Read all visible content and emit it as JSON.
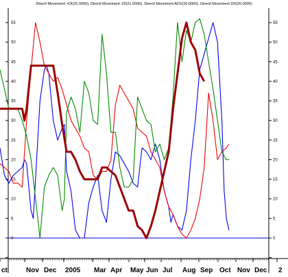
{
  "chart_data": {
    "type": "line",
    "title": "Directl Movement +DI(20.0000), Directl Movement -DI(21.0000), Directl Movement ADX(20.0000), Directl Movement DX(20.0000)",
    "xlabel": "",
    "ylabel": "",
    "ylim": [
      -5.5,
      58
    ],
    "x_range": [
      0,
      51.6
    ],
    "y_ticks": [
      0,
      5,
      10,
      15,
      20,
      25,
      30,
      35,
      40,
      45,
      50,
      55
    ],
    "x_ticks": [
      {
        "label": "ct",
        "x": 0
      },
      {
        "label": "Nov",
        "x": 4.3
      },
      {
        "label": "Dec",
        "x": 8.6
      },
      {
        "label": "2005",
        "x": 13.0
      },
      {
        "label": "Mar",
        "x": 17.5
      },
      {
        "label": "Apr",
        "x": 20.8
      },
      {
        "label": "May",
        "x": 24.9
      },
      {
        "label": "Jun",
        "x": 28.1
      },
      {
        "label": "Jul",
        "x": 31.8
      },
      {
        "label": "Aug",
        "x": 36.5
      },
      {
        "label": "Sep",
        "x": 40.0
      },
      {
        "label": "Oct",
        "x": 44.0
      },
      {
        "label": "Nov",
        "x": 48.3
      },
      {
        "label": "Dec",
        "x": 52.5
      },
      {
        "label": "2",
        "x": 56.6
      }
    ],
    "zero_line": 0,
    "grid": false,
    "series": [
      {
        "color": "#0000ee",
        "points": [
          [
            0,
            23
          ],
          [
            1,
            16
          ],
          [
            2,
            14
          ],
          [
            3,
            16
          ],
          [
            4,
            17
          ],
          [
            5,
            18
          ],
          [
            5.5,
            20
          ],
          [
            6,
            19
          ],
          [
            7,
            7
          ],
          [
            7.5,
            5
          ],
          [
            8,
            15
          ],
          [
            9,
            35
          ],
          [
            10,
            43
          ],
          [
            10.5,
            44
          ],
          [
            11,
            42
          ],
          [
            12,
            30
          ],
          [
            13,
            25
          ],
          [
            14,
            28
          ],
          [
            14.5,
            29
          ],
          [
            15,
            17
          ],
          [
            16,
            12
          ],
          [
            17,
            2
          ],
          [
            17.5,
            1
          ],
          [
            18,
            0
          ],
          [
            19,
            0
          ],
          [
            20,
            9
          ],
          [
            21,
            13
          ],
          [
            22,
            16
          ],
          [
            23,
            7
          ],
          [
            24,
            4
          ],
          [
            25,
            15
          ],
          [
            26,
            22
          ],
          [
            27,
            21
          ],
          [
            28,
            19
          ],
          [
            29,
            17
          ],
          [
            30,
            14
          ],
          [
            31,
            13
          ],
          [
            32,
            23
          ],
          [
            33,
            22
          ],
          [
            34,
            20
          ],
          [
            35,
            24
          ],
          [
            36,
            20
          ],
          [
            37,
            12
          ],
          [
            38,
            8
          ],
          [
            38.5,
            4
          ],
          [
            39,
            6
          ],
          [
            40,
            3
          ],
          [
            41,
            2
          ],
          [
            42,
            7
          ],
          [
            43,
            20
          ],
          [
            44,
            30
          ],
          [
            45,
            43
          ],
          [
            46,
            47
          ],
          [
            47,
            51
          ],
          [
            48,
            55
          ],
          [
            49,
            50
          ],
          [
            50,
            30
          ],
          [
            50.5,
            12
          ],
          [
            51,
            5
          ],
          [
            51.6,
            2
          ]
        ]
      },
      {
        "color": "#ee0000",
        "points": [
          [
            0,
            19
          ],
          [
            1,
            18
          ],
          [
            2,
            17
          ],
          [
            3,
            14
          ],
          [
            4,
            14
          ],
          [
            5,
            13
          ],
          [
            6,
            30
          ],
          [
            7,
            43
          ],
          [
            8,
            55
          ],
          [
            9,
            50
          ],
          [
            10,
            44
          ],
          [
            11,
            42
          ],
          [
            12,
            40
          ],
          [
            13,
            41
          ],
          [
            14,
            38
          ],
          [
            15,
            34
          ],
          [
            16,
            30
          ],
          [
            17,
            28
          ],
          [
            18,
            26
          ],
          [
            19,
            23
          ],
          [
            20,
            22
          ],
          [
            21,
            16
          ],
          [
            22,
            15
          ],
          [
            23,
            17
          ],
          [
            24,
            17
          ],
          [
            25,
            20
          ],
          [
            26,
            34
          ],
          [
            27,
            39
          ],
          [
            28,
            37
          ],
          [
            29,
            35
          ],
          [
            30,
            33
          ],
          [
            31,
            28
          ],
          [
            32,
            27
          ],
          [
            33,
            26
          ],
          [
            34,
            22
          ],
          [
            35,
            20
          ],
          [
            36,
            18
          ],
          [
            37,
            12
          ],
          [
            38,
            8
          ],
          [
            39,
            6
          ],
          [
            40,
            3
          ],
          [
            41,
            1
          ],
          [
            42,
            0
          ],
          [
            43,
            2
          ],
          [
            44,
            5
          ],
          [
            45,
            10
          ],
          [
            46,
            18
          ],
          [
            47,
            37
          ],
          [
            48,
            30
          ],
          [
            49,
            20
          ],
          [
            50,
            22
          ],
          [
            51,
            23
          ],
          [
            51.6,
            24
          ]
        ]
      },
      {
        "color": "#008800",
        "points": [
          [
            0,
            43
          ],
          [
            1,
            38
          ],
          [
            2,
            33
          ],
          [
            3,
            33
          ],
          [
            4,
            33
          ],
          [
            5,
            30
          ],
          [
            6,
            26
          ],
          [
            7,
            20
          ],
          [
            8,
            10
          ],
          [
            9,
            0
          ],
          [
            10,
            13
          ],
          [
            11,
            16
          ],
          [
            12,
            18
          ],
          [
            13,
            16
          ],
          [
            14,
            7
          ],
          [
            14.5,
            10
          ],
          [
            15,
            32
          ],
          [
            16,
            36
          ],
          [
            17,
            33
          ],
          [
            18,
            27
          ],
          [
            19,
            40
          ],
          [
            20,
            37
          ],
          [
            21,
            30
          ],
          [
            22,
            29
          ],
          [
            23,
            52
          ],
          [
            24,
            42
          ],
          [
            25,
            27
          ],
          [
            26,
            27
          ],
          [
            27,
            18
          ],
          [
            28,
            13
          ],
          [
            29,
            13
          ],
          [
            30,
            15
          ],
          [
            31,
            36
          ],
          [
            32,
            33
          ],
          [
            33,
            30
          ],
          [
            34,
            29
          ],
          [
            35,
            22
          ],
          [
            36,
            24
          ],
          [
            37,
            20
          ],
          [
            38,
            23
          ],
          [
            39,
            36
          ],
          [
            40,
            55
          ],
          [
            41,
            45
          ],
          [
            42,
            53
          ],
          [
            43,
            50
          ],
          [
            44,
            55
          ],
          [
            45,
            56
          ],
          [
            46,
            52
          ],
          [
            47,
            45
          ],
          [
            48,
            38
          ],
          [
            49,
            30
          ],
          [
            50,
            22
          ],
          [
            51,
            20
          ],
          [
            51.6,
            20
          ]
        ]
      },
      {
        "color": "#990000",
        "width": 3,
        "points": [
          [
            0,
            33
          ],
          [
            5,
            33
          ],
          [
            5.5,
            30
          ],
          [
            6,
            33
          ],
          [
            7,
            44
          ],
          [
            12,
            44
          ],
          [
            13,
            37
          ],
          [
            14,
            29
          ],
          [
            15,
            22
          ],
          [
            16,
            22
          ],
          [
            17,
            20
          ],
          [
            18,
            17
          ],
          [
            19,
            15
          ],
          [
            22,
            15
          ],
          [
            23,
            18
          ],
          [
            24,
            18
          ],
          [
            25,
            17
          ],
          [
            26,
            16
          ],
          [
            27,
            13
          ],
          [
            28,
            10
          ],
          [
            29,
            7
          ],
          [
            30,
            7
          ],
          [
            31,
            3
          ],
          [
            32,
            2
          ],
          [
            33,
            0
          ],
          [
            34,
            3
          ],
          [
            35,
            7
          ],
          [
            36,
            12
          ],
          [
            37,
            17
          ],
          [
            38,
            22
          ],
          [
            39,
            33
          ],
          [
            40,
            42
          ],
          [
            41,
            51
          ],
          [
            42,
            55
          ],
          [
            43,
            50
          ],
          [
            44,
            48
          ],
          [
            45,
            42
          ],
          [
            46,
            40
          ]
        ]
      }
    ]
  }
}
